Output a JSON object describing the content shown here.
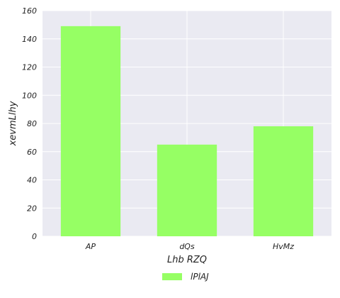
{
  "chart_data": {
    "type": "bar",
    "categories": [
      "AP",
      "dQs",
      "HvMz"
    ],
    "series": [
      {
        "name": "lPlAJ",
        "values": [
          149,
          65,
          78
        ],
        "color": "#96ff64"
      }
    ],
    "xlabel": "Lhb RZQ",
    "ylabel": "xevmLlhy",
    "ylim": [
      0,
      160
    ],
    "yticks": [
      0,
      20,
      40,
      60,
      80,
      100,
      120,
      140,
      160
    ],
    "grid": true,
    "legend_position": "bottom-center",
    "background_color": "#eaeaf2",
    "grid_color": "#ffffff"
  }
}
